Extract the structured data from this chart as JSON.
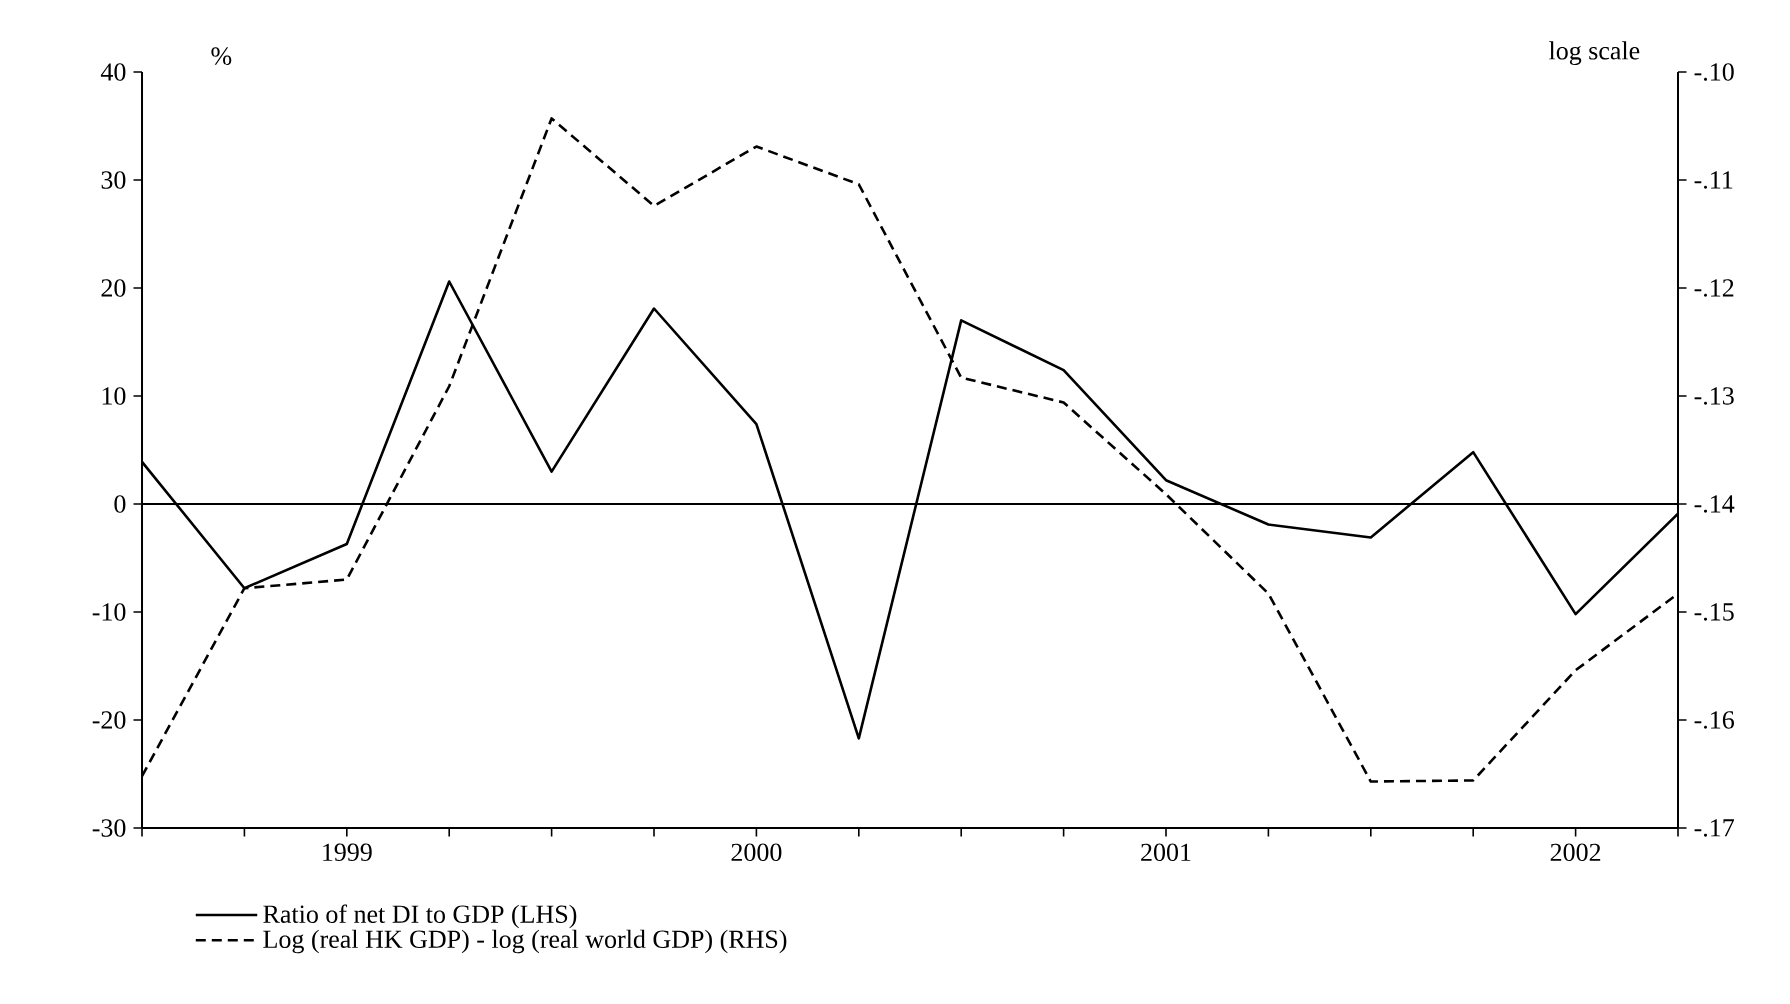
{
  "chart_data": {
    "type": "line",
    "ylabel": "%",
    "y2label": "log scale",
    "categories": [
      null,
      null,
      "1999",
      null,
      null,
      null,
      "2000",
      null,
      null,
      null,
      "2001",
      null,
      null,
      null,
      "2002",
      null
    ],
    "series": [
      {
        "name": "Ratio of net DI to GDP (LHS)",
        "color": "#000000",
        "line_style": "solid",
        "values": [
          3.9,
          -7.8,
          -3.7,
          20.6,
          3.0,
          18.1,
          7.4,
          -21.7,
          17.0,
          12.4,
          2.2,
          -1.9,
          -3.1,
          4.8,
          -10.2,
          -0.9
        ]
      },
      {
        "name": "Log (real HK GDP) - log (real world GDP) (RHS)",
        "color": "#000000",
        "line_style": "dashed",
        "axis": "y2",
        "values": [
          -0.1652,
          -0.1478,
          -0.147,
          -0.1291,
          -0.1043,
          -0.1124,
          -0.1069,
          -0.1104,
          -0.1283,
          -0.1306,
          -0.1391,
          -0.1483,
          -0.1657,
          -0.1656,
          -0.1554,
          -0.1483
        ]
      }
    ],
    "ylim": [
      -30,
      40
    ],
    "yticks": [
      -30,
      -20,
      -10,
      0,
      10,
      20,
      30,
      40
    ],
    "y2lim": [
      -0.17,
      -0.1
    ],
    "y2ticks": [
      {
        "value": -0.17,
        "label": "-.17"
      },
      {
        "value": -0.16,
        "label": "-.16"
      },
      {
        "value": -0.15,
        "label": "-.15"
      },
      {
        "value": -0.14,
        "label": "-.14"
      },
      {
        "value": -0.13,
        "label": "-.13"
      },
      {
        "value": -0.12,
        "label": "-.12"
      },
      {
        "value": -0.11,
        "label": "-.11"
      },
      {
        "value": -0.1,
        "label": "-.10"
      }
    ],
    "ref_lines": [
      {
        "axis": "y",
        "value": 0
      }
    ],
    "grid": false,
    "legend": "bottom",
    "marker": "none"
  }
}
